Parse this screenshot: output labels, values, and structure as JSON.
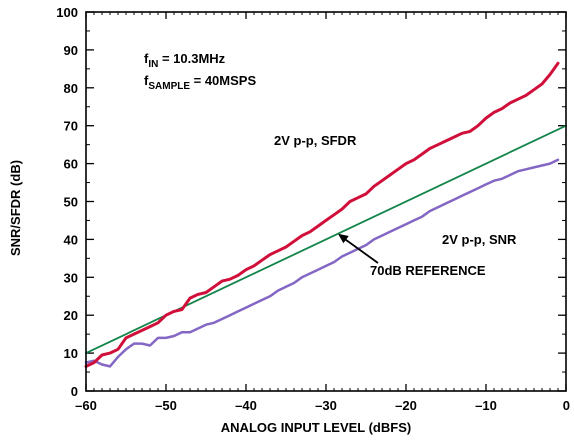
{
  "chart_data": {
    "type": "line",
    "title": "",
    "xlabel": "ANALOG INPUT LEVEL (dBFS)",
    "ylabel": "SNR/SFDR (dB)",
    "xlim": [
      -60,
      0
    ],
    "ylim": [
      0,
      100
    ],
    "xticks": [
      -60,
      -50,
      -40,
      -30,
      -20,
      -10,
      0
    ],
    "xtick_labels": [
      "–60",
      "–50",
      "–40",
      "–30",
      "–20",
      "–10",
      "0"
    ],
    "yticks": [
      0,
      10,
      20,
      30,
      40,
      50,
      60,
      70,
      80,
      90,
      100
    ],
    "yminor_step": 5,
    "xminor_step": 1,
    "grid": false,
    "legend": "none",
    "conditions": {
      "fin": {
        "main": "f",
        "sub": "IN",
        "rest": " = 10.3MHz"
      },
      "fsample": {
        "main": "f",
        "sub": "SAMPLE",
        "rest": " = 40MSPS"
      }
    },
    "series": [
      {
        "name": "2V p-p, SFDR",
        "color": "#d0103a",
        "width": 3,
        "x": [
          -60,
          -59,
          -58,
          -57,
          -56,
          -55,
          -54,
          -53,
          -52,
          -51,
          -50,
          -49,
          -48,
          -47,
          -46,
          -45,
          -44,
          -43,
          -42,
          -41,
          -40,
          -39,
          -38,
          -37,
          -36,
          -35,
          -34,
          -33,
          -32,
          -31,
          -30,
          -29,
          -28,
          -27,
          -26,
          -25,
          -24,
          -23,
          -22,
          -21,
          -20,
          -19,
          -18,
          -17,
          -16,
          -15,
          -14,
          -13,
          -12,
          -11,
          -10,
          -9,
          -8,
          -7,
          -6,
          -5,
          -4,
          -3,
          -2,
          -1
        ],
        "y": [
          6.5,
          7.5,
          9.5,
          10,
          11,
          14,
          15,
          16,
          17,
          18,
          20,
          21,
          21.5,
          24.5,
          25.5,
          26,
          27.5,
          29,
          29.5,
          30.5,
          32,
          33,
          34.5,
          36,
          37,
          38,
          39.5,
          41,
          42,
          43.5,
          45,
          46.5,
          48,
          50,
          51,
          52,
          54,
          55.5,
          57,
          58.5,
          60,
          61,
          62.5,
          64,
          65,
          66,
          67,
          68,
          68.5,
          70,
          72,
          73.5,
          74.5,
          76,
          77,
          78,
          79.5,
          81,
          83.5,
          86.5
        ]
      },
      {
        "name": "2V p-p, SNR",
        "color": "#8467c4",
        "width": 2.5,
        "x": [
          -60,
          -59,
          -58,
          -57,
          -56,
          -55,
          -54,
          -53,
          -52,
          -51,
          -50,
          -49,
          -48,
          -47,
          -46,
          -45,
          -44,
          -43,
          -42,
          -41,
          -40,
          -39,
          -38,
          -37,
          -36,
          -35,
          -34,
          -33,
          -32,
          -31,
          -30,
          -29,
          -28,
          -27,
          -26,
          -25,
          -24,
          -23,
          -22,
          -21,
          -20,
          -19,
          -18,
          -17,
          -16,
          -15,
          -14,
          -13,
          -12,
          -11,
          -10,
          -9,
          -8,
          -7,
          -6,
          -5,
          -4,
          -3,
          -2,
          -1
        ],
        "y": [
          7.5,
          8,
          7,
          6.5,
          9,
          11,
          12.5,
          12.5,
          12,
          14,
          14,
          14.5,
          15.5,
          15.5,
          16.5,
          17.5,
          18,
          19,
          20,
          21,
          22,
          23,
          24,
          25,
          26.5,
          27.5,
          28.5,
          30,
          31,
          32,
          33,
          34,
          35.5,
          36.5,
          37.5,
          38.5,
          40,
          41,
          42,
          43,
          44,
          45,
          46,
          47.5,
          48.5,
          49.5,
          50.5,
          51.5,
          52.5,
          53.5,
          54.5,
          55.5,
          56,
          57,
          58,
          58.5,
          59,
          59.5,
          60,
          61
        ]
      },
      {
        "name": "70dB REFERENCE",
        "color": "#13854a",
        "width": 1.8,
        "x": [
          -60,
          0
        ],
        "y": [
          10,
          70
        ]
      }
    ],
    "annotations": [
      {
        "text": "2V p-p, SFDR"
      },
      {
        "text": "2V p-p, SNR"
      },
      {
        "text": "70dB REFERENCE",
        "arrow_to": [
          -28.5,
          41.5
        ]
      }
    ]
  }
}
